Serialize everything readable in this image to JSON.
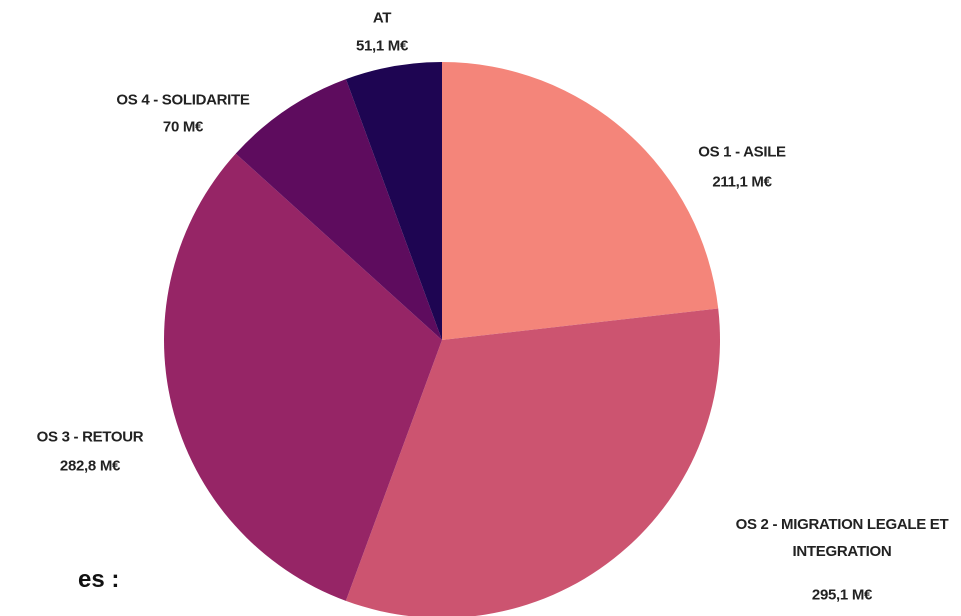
{
  "chart_data": {
    "type": "pie",
    "categories": [
      "OS 1 - ASILE",
      "OS 2 - MIGRATION LEGALE ET INTEGRATION",
      "OS 3 - RETOUR",
      "OS 4 - SOLIDARITE",
      "AT"
    ],
    "values": [
      211.1,
      295.1,
      282.8,
      70,
      51.1
    ],
    "value_labels": [
      "211,1 M€",
      "295,1 M€",
      "282,8 M€",
      "70 M€",
      "51,1 M€"
    ],
    "colors": [
      "#f4857a",
      "#cc5470",
      "#962566",
      "#5e0c5e",
      "#1e0552"
    ],
    "annotations": [
      "es :"
    ]
  }
}
